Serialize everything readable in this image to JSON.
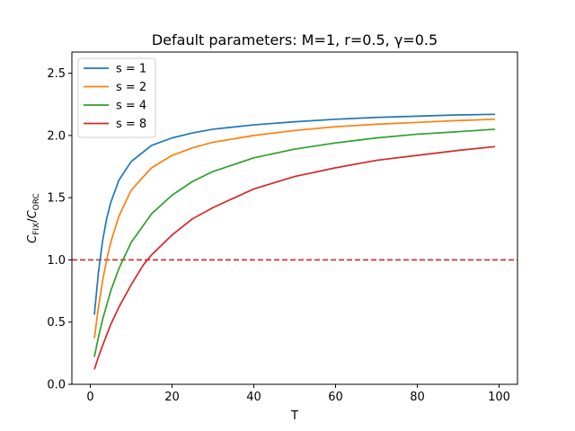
{
  "chart_data": {
    "type": "line",
    "title": "Default parameters: M=1, r=0.5, γ=0.5",
    "xlabel": "T",
    "ylabel": {
      "main_c1": "C",
      "sub1": "FIX",
      "slash": "/",
      "main_c2": "C",
      "sub2": "ORC"
    },
    "xlim": [
      -4.5,
      104.5
    ],
    "ylim": [
      0,
      2.67
    ],
    "xticks": [
      "0",
      "20",
      "40",
      "60",
      "80",
      "100"
    ],
    "xtick_values": [
      0,
      20,
      40,
      60,
      80,
      100
    ],
    "yticks": [
      "0.0",
      "0.5",
      "1.0",
      "1.5",
      "2.0",
      "2.5"
    ],
    "ytick_values": [
      0,
      0.5,
      1.0,
      1.5,
      2.0,
      2.5
    ],
    "grid": false,
    "legend_position": "top-left",
    "reference_line": {
      "y": 1.0,
      "color": "#d62728",
      "style": "dashed"
    },
    "series": [
      {
        "name": "s = 1",
        "color": "#1f77b4",
        "x": [
          1,
          2,
          3,
          4,
          5,
          7,
          10,
          15,
          20,
          25,
          30,
          40,
          50,
          60,
          70,
          80,
          90,
          99
        ],
        "y": [
          0.56,
          0.9,
          1.15,
          1.33,
          1.46,
          1.64,
          1.79,
          1.92,
          1.98,
          2.02,
          2.05,
          2.085,
          2.11,
          2.13,
          2.145,
          2.155,
          2.165,
          2.17
        ]
      },
      {
        "name": "s = 2",
        "color": "#ff7f0e",
        "x": [
          1,
          2,
          3,
          4,
          5,
          7,
          10,
          15,
          20,
          25,
          30,
          40,
          50,
          60,
          70,
          80,
          90,
          99
        ],
        "y": [
          0.37,
          0.62,
          0.83,
          1.0,
          1.14,
          1.35,
          1.56,
          1.74,
          1.84,
          1.9,
          1.945,
          2.0,
          2.04,
          2.07,
          2.09,
          2.105,
          2.12,
          2.13
        ]
      },
      {
        "name": "s = 4",
        "color": "#2ca02c",
        "x": [
          1,
          2,
          3,
          5,
          7,
          10,
          15,
          20,
          25,
          30,
          40,
          50,
          60,
          70,
          80,
          90,
          99
        ],
        "y": [
          0.22,
          0.38,
          0.52,
          0.75,
          0.93,
          1.14,
          1.37,
          1.52,
          1.63,
          1.71,
          1.82,
          1.89,
          1.94,
          1.98,
          2.01,
          2.03,
          2.05
        ]
      },
      {
        "name": "s = 8",
        "color": "#d62728",
        "x": [
          1,
          2,
          3,
          5,
          7,
          10,
          13,
          15,
          20,
          25,
          30,
          40,
          50,
          60,
          70,
          80,
          90,
          99
        ],
        "y": [
          0.12,
          0.22,
          0.31,
          0.48,
          0.62,
          0.8,
          0.96,
          1.04,
          1.2,
          1.33,
          1.42,
          1.57,
          1.67,
          1.74,
          1.8,
          1.84,
          1.88,
          1.91
        ]
      }
    ]
  }
}
